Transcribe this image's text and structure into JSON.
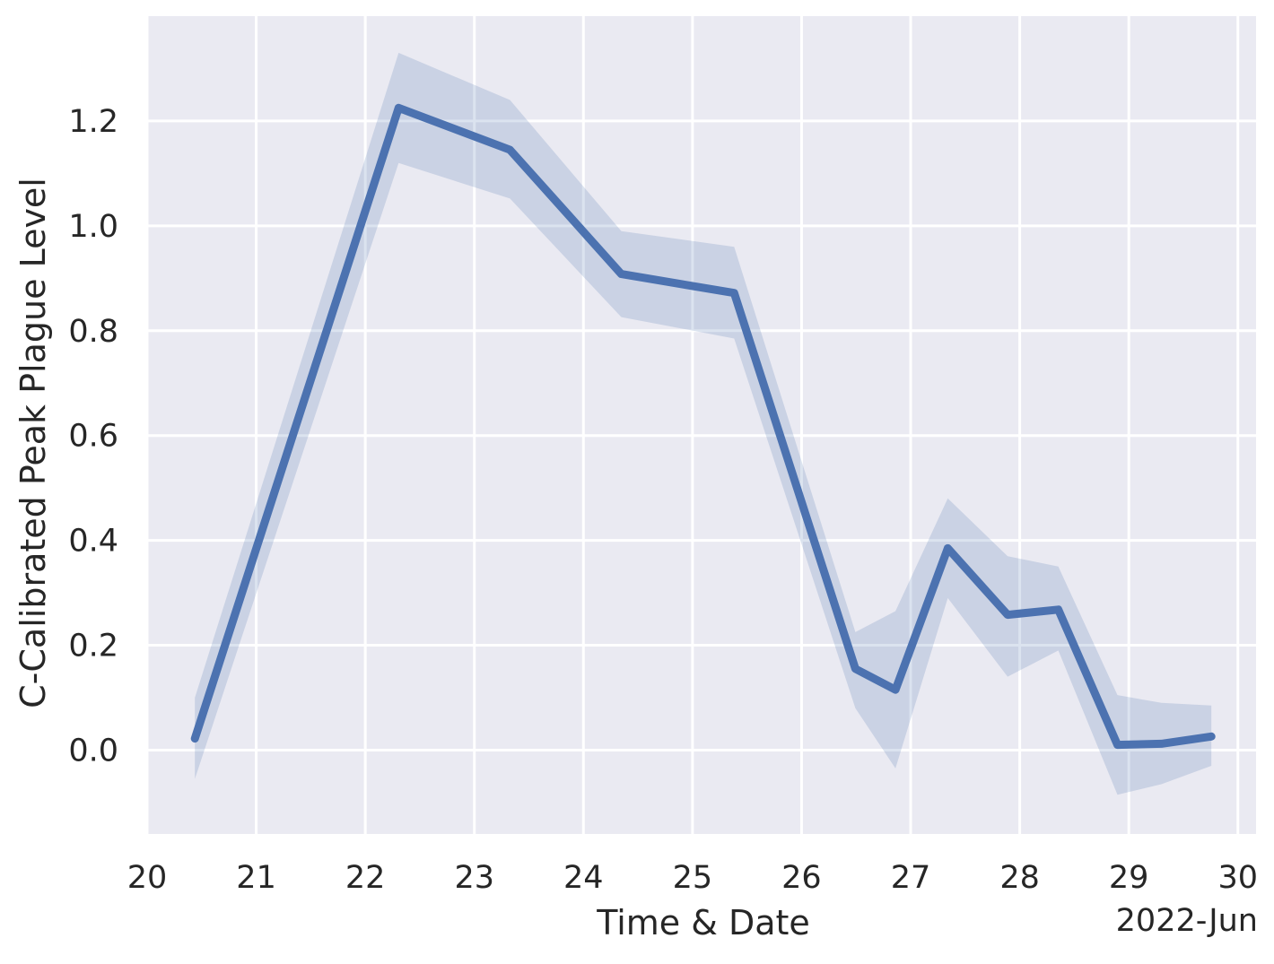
{
  "chart_data": {
    "type": "line",
    "title": "",
    "xlabel": "Time & Date",
    "ylabel": "C-Calibrated Peak Plague Level",
    "x_offset_label": "2022-Jun",
    "xlim": [
      "2022-06-20T00:00",
      "2022-06-30T04:00"
    ],
    "ylim": [
      -0.16,
      1.4
    ],
    "x_tick_labels": [
      "20",
      "21",
      "22",
      "23",
      "24",
      "25",
      "26",
      "27",
      "28",
      "29",
      "30"
    ],
    "y_ticks": [
      0.0,
      0.2,
      0.4,
      0.6,
      0.8,
      1.0,
      1.2
    ],
    "y_tick_labels": [
      "0.0",
      "0.2",
      "0.4",
      "0.6",
      "0.8",
      "1.0",
      "1.2"
    ],
    "grid": true,
    "legend": "none",
    "colors": {
      "background": "#eaeaf2",
      "grid": "#ffffff",
      "line": "#4c72b0",
      "band": "#4c72b0"
    },
    "series": [
      {
        "x": [
          "2022-06-20T10:30",
          "2022-06-22T07:20",
          "2022-06-23T07:50",
          "2022-06-24T08:20",
          "2022-06-25T09:10",
          "2022-06-26T11:50",
          "2022-06-26T20:40",
          "2022-06-27T08:10",
          "2022-06-27T21:20",
          "2022-06-28T08:30",
          "2022-06-28T21:30",
          "2022-06-29T07:10",
          "2022-06-29T18:10"
        ],
        "y": [
          0.022,
          1.225,
          1.145,
          0.908,
          0.872,
          0.155,
          0.115,
          0.385,
          0.258,
          0.268,
          0.01,
          0.012,
          0.026
        ],
        "ci_low": [
          -0.055,
          1.12,
          1.052,
          0.826,
          0.785,
          0.08,
          -0.035,
          0.29,
          0.14,
          0.19,
          -0.085,
          -0.065,
          -0.03
        ],
        "ci_high": [
          0.1,
          1.33,
          1.24,
          0.99,
          0.96,
          0.225,
          0.265,
          0.48,
          0.37,
          0.35,
          0.105,
          0.09,
          0.085
        ]
      }
    ]
  }
}
